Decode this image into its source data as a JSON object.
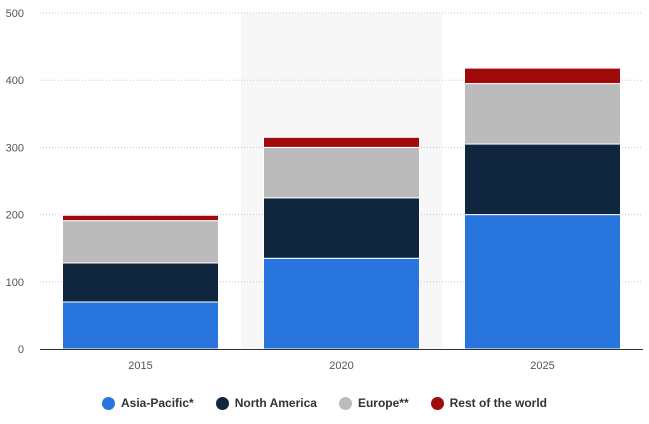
{
  "chart_data": {
    "type": "bar",
    "stacked": true,
    "categories": [
      "2015",
      "2020",
      "2025"
    ],
    "highlighted_category": "2020",
    "series": [
      {
        "name": "Asia-Pacific*",
        "color": "#2876dd",
        "values": [
          70,
          135,
          200
        ]
      },
      {
        "name": "North America",
        "color": "#10263f",
        "values": [
          58,
          90,
          105
        ]
      },
      {
        "name": "Europe**",
        "color": "#bbbbbb",
        "values": [
          63,
          75,
          90
        ]
      },
      {
        "name": "Rest of the world",
        "color": "#a10a0a",
        "values": [
          8,
          15,
          23
        ]
      }
    ],
    "ylim": [
      0,
      500
    ],
    "yticks": [
      "0",
      "100",
      "200",
      "300",
      "400",
      "500"
    ],
    "grid": true,
    "legend_position": "bottom"
  }
}
